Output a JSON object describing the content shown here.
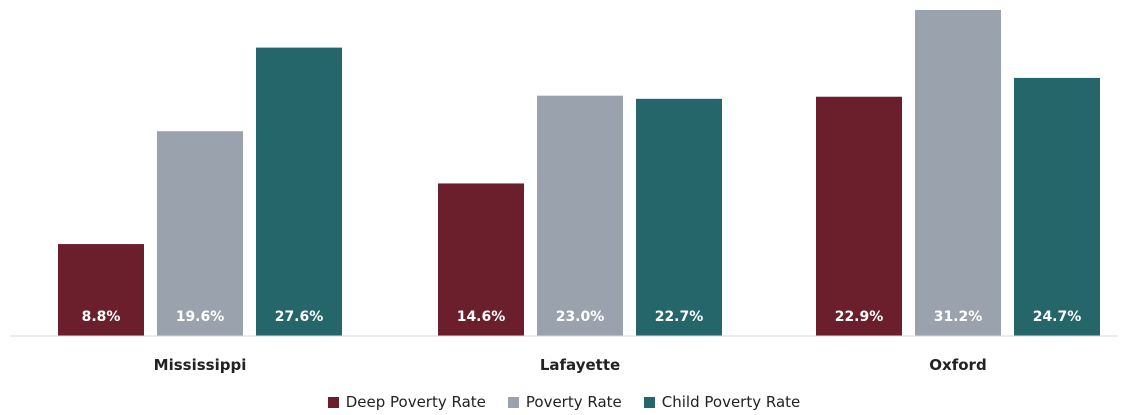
{
  "chart_data": {
    "type": "bar",
    "categories": [
      "Mississippi",
      "Lafayette",
      "Oxford"
    ],
    "series": [
      {
        "name": "Deep Poverty Rate",
        "color": "#6b1f2c",
        "values": [
          8.8,
          14.6,
          22.9
        ],
        "labels": [
          "8.8%",
          "14.6%",
          "22.9%"
        ]
      },
      {
        "name": "Poverty Rate",
        "color": "#9aa3ad",
        "values": [
          19.6,
          23.0,
          31.2
        ],
        "labels": [
          "19.6%",
          "23.0%",
          "31.2%"
        ]
      },
      {
        "name": "Child Poverty Rate",
        "color": "#25666b",
        "values": [
          27.6,
          22.7,
          24.7
        ],
        "labels": [
          "27.6%",
          "22.7%",
          "24.7%"
        ]
      }
    ],
    "title": "",
    "xlabel": "",
    "ylabel": "",
    "ylim": [
      0,
      32
    ],
    "grid": false,
    "legend_position": "bottom-center",
    "data_label_color": "#ffffff"
  }
}
